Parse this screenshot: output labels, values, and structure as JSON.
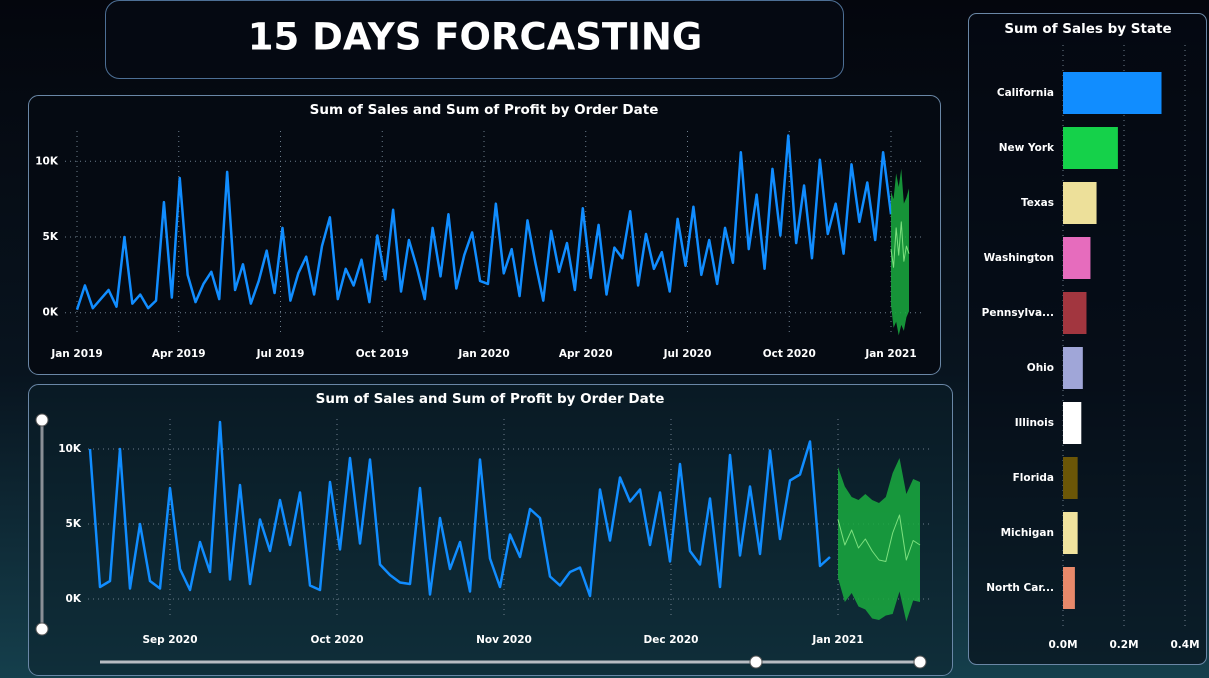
{
  "header": {
    "title": "15 DAYS FORCASTING"
  },
  "chart_data": [
    {
      "type": "line",
      "title": "Sum of Sales and Sum of Profit by Order Date",
      "xticks": [
        "Jan 2019",
        "Apr 2019",
        "Jul 2019",
        "Oct 2019",
        "Jan 2020",
        "Apr 2020",
        "Jul 2020",
        "Oct 2020",
        "Jan 2021"
      ],
      "ylim": [
        -2000,
        12000
      ],
      "yticks": [
        {
          "value": 0,
          "label": "0K"
        },
        {
          "value": 5000,
          "label": "5K"
        },
        {
          "value": 10000,
          "label": "10K"
        }
      ],
      "grid": true,
      "series": [
        {
          "color": "#118dff",
          "values": [
            200,
            1800,
            300,
            900,
            1500,
            400,
            5000,
            600,
            1200,
            300,
            800,
            7300,
            1000,
            8900,
            2500,
            700,
            1900,
            2700,
            900,
            9300,
            1500,
            3200,
            600,
            2100,
            4100,
            1300,
            5600,
            800,
            2600,
            3700,
            1200,
            4400,
            6300,
            900,
            2900,
            1800,
            3500,
            700,
            5100,
            2200,
            6800,
            1400,
            4800,
            3000,
            900,
            5600,
            2400,
            6500,
            1600,
            3800,
            5300,
            2100,
            1900,
            7200,
            2600,
            4200,
            1100,
            6100,
            3300,
            800,
            5400,
            2700,
            4600,
            1500,
            6900,
            2300,
            5800,
            1200,
            4300,
            3600,
            6700,
            1800,
            5200,
            2900,
            4000,
            1400,
            6200,
            3100,
            7000,
            2500,
            4800,
            1900,
            5600,
            3300,
            10600,
            4200,
            7800,
            2900,
            9500,
            5100,
            11700,
            4600,
            8400,
            3600,
            10100,
            5200,
            7200,
            3900,
            9800,
            6000,
            8600,
            4800,
            10600,
            6500
          ]
        },
        {
          "color": "#1aab40",
          "values": [
            4200,
            3000,
            5600,
            3800,
            6000,
            3400,
            4400,
            3900
          ],
          "upper": [
            8000,
            7500,
            9200,
            8300,
            9500,
            7200,
            7600,
            8200
          ],
          "lower": [
            500,
            -1000,
            -600,
            -1500,
            -800,
            -1200,
            -300,
            100
          ]
        }
      ]
    },
    {
      "type": "line",
      "title": "Sum of Sales and Sum of Profit by Order Date",
      "xticks": [
        "Sep 2020",
        "Oct 2020",
        "Nov 2020",
        "Dec 2020",
        "Jan 2021"
      ],
      "ylim": [
        -2000,
        12000
      ],
      "yticks": [
        {
          "value": 0,
          "label": "0K"
        },
        {
          "value": 5000,
          "label": "5K"
        },
        {
          "value": 10000,
          "label": "10K"
        }
      ],
      "grid": true,
      "series": [
        {
          "color": "#118dff",
          "values": [
            10000,
            800,
            1200,
            10000,
            700,
            5000,
            1200,
            700,
            7400,
            2000,
            600,
            3800,
            1800,
            11800,
            1300,
            7600,
            1000,
            5300,
            3200,
            6600,
            3600,
            7100,
            900,
            600,
            7800,
            3300,
            9400,
            3700,
            9300,
            2300,
            1600,
            1100,
            1000,
            7400,
            300,
            5400,
            2000,
            3800,
            500,
            9300,
            2700,
            800,
            4300,
            2800,
            6000,
            5400,
            1500,
            900,
            1800,
            2100,
            200,
            7300,
            3900,
            8100,
            6500,
            7300,
            3600,
            7100,
            2500,
            9000,
            3200,
            2300,
            6700,
            800,
            9600,
            2900,
            7500,
            3000,
            9900,
            4000,
            7900,
            8300,
            10500,
            2200,
            2800
          ]
        },
        {
          "color": "#1aab40",
          "values": [
            5300,
            3600,
            4600,
            3400,
            4000,
            3200,
            2600,
            2500,
            4400,
            5600,
            2600,
            3900,
            3600
          ],
          "upper": [
            8800,
            7500,
            6800,
            6600,
            7000,
            6600,
            6400,
            6800,
            8400,
            9400,
            7000,
            8000,
            7800
          ],
          "lower": [
            1400,
            -200,
            400,
            -500,
            -700,
            -1300,
            -1400,
            -1100,
            -1000,
            500,
            -1500,
            -100,
            -200
          ]
        }
      ]
    },
    {
      "type": "hbar",
      "title": "Sum of Sales by State",
      "categories": [
        "California",
        "New York",
        "Texas",
        "Washington",
        "Pennsylva...",
        "Ohio",
        "Illinois",
        "Florida",
        "Michigan",
        "North Car..."
      ],
      "values": [
        0.323,
        0.18,
        0.11,
        0.09,
        0.077,
        0.065,
        0.06,
        0.048,
        0.048,
        0.039
      ],
      "colors": [
        "#118dff",
        "#15d14a",
        "#ede09a",
        "#e66cbd",
        "#a2363f",
        "#a0a6d8",
        "#ffffff",
        "#6b5607",
        "#f0e39e",
        "#e8896a"
      ],
      "xlim": [
        0,
        0.4
      ],
      "xticks": [
        {
          "value": 0,
          "label": "0.0M"
        },
        {
          "value": 0.2,
          "label": "0.2M"
        },
        {
          "value": 0.4,
          "label": "0.4M"
        }
      ],
      "grid": true
    }
  ]
}
